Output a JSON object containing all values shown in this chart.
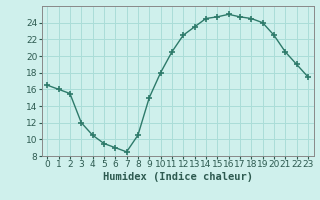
{
  "x": [
    0,
    1,
    2,
    3,
    4,
    5,
    6,
    7,
    8,
    9,
    10,
    11,
    12,
    13,
    14,
    15,
    16,
    17,
    18,
    19,
    20,
    21,
    22,
    23
  ],
  "y": [
    16.5,
    16.0,
    15.5,
    12.0,
    10.5,
    9.5,
    9.0,
    8.5,
    10.5,
    15.0,
    18.0,
    20.5,
    22.5,
    23.5,
    24.5,
    24.7,
    25.0,
    24.7,
    24.5,
    24.0,
    22.5,
    20.5,
    19.0,
    17.5
  ],
  "line_color": "#2d7a6a",
  "marker": "+",
  "marker_size": 4,
  "marker_lw": 1.2,
  "bg_color": "#cff0ec",
  "grid_color": "#aaddd8",
  "xlabel": "Humidex (Indice chaleur)",
  "xlim": [
    -0.5,
    23.5
  ],
  "ylim": [
    8,
    26
  ],
  "yticks": [
    8,
    10,
    12,
    14,
    16,
    18,
    20,
    22,
    24
  ],
  "xticks": [
    0,
    1,
    2,
    3,
    4,
    5,
    6,
    7,
    8,
    9,
    10,
    11,
    12,
    13,
    14,
    15,
    16,
    17,
    18,
    19,
    20,
    21,
    22,
    23
  ],
  "tick_fontsize": 6.5,
  "xlabel_fontsize": 7.5,
  "line_width": 1.0
}
